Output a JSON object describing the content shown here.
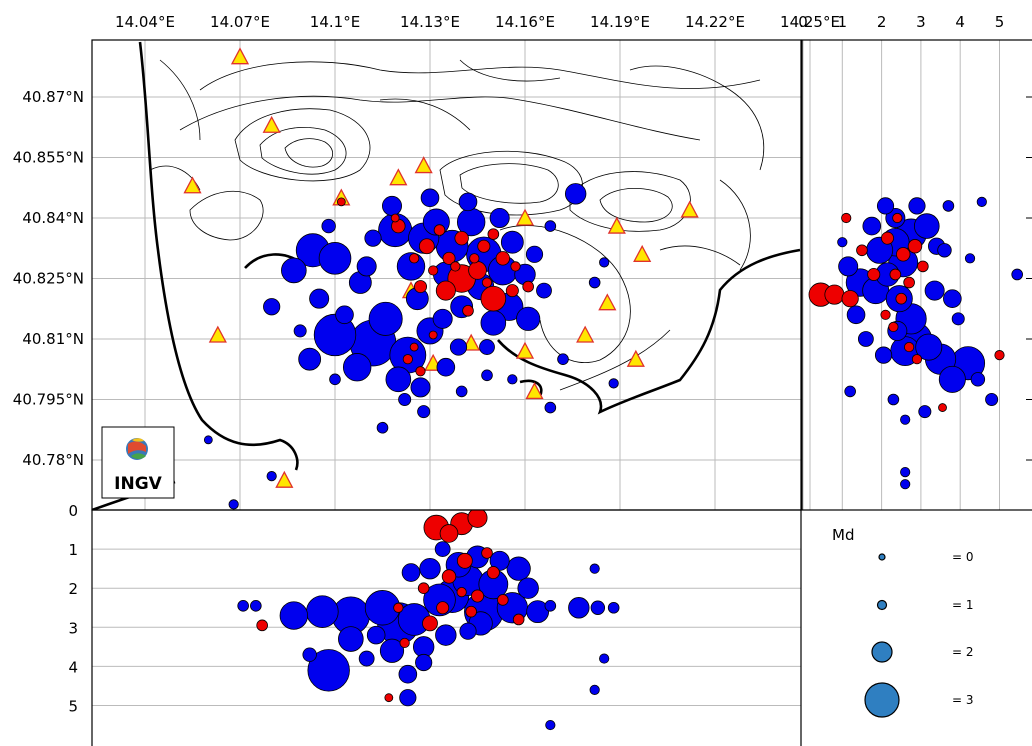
{
  "map": {
    "lon_ticks": [
      "14.04°E",
      "14.07°E",
      "14.1°E",
      "14.13°E",
      "14.16°E",
      "14.19°E",
      "14.22°E",
      "14.25°E"
    ],
    "lat_ticks": [
      "40.87°N",
      "40.855°N",
      "40.84°N",
      "40.825°N",
      "40.81°N",
      "40.795°N",
      "40.78°N"
    ],
    "logo_text": "INGV"
  },
  "side_panel": {
    "depth_ticks": [
      "0",
      "1",
      "2",
      "3",
      "4",
      "5"
    ]
  },
  "bottom_panel": {
    "depth_ticks": [
      "0",
      "1",
      "2",
      "3",
      "4",
      "5"
    ]
  },
  "legend": {
    "title": "Md",
    "entries": [
      {
        "magnitude": 0,
        "label": "= 0"
      },
      {
        "magnitude": 1,
        "label": "= 1"
      },
      {
        "magnitude": 2,
        "label": "= 2"
      },
      {
        "magnitude": 3,
        "label": "= 3"
      }
    ]
  },
  "colors": {
    "event_blue": "#0000ee",
    "event_red": "#ee0000",
    "station_fill": "#ffe600",
    "station_edge": "#e0322c",
    "legend_fill": "#2f7fc1",
    "grid": "#bbbbbb"
  },
  "chart_data": {
    "type": "scatter",
    "stations": [
      [
        14.07,
        40.88
      ],
      [
        14.08,
        40.863
      ],
      [
        14.055,
        40.848
      ],
      [
        14.102,
        40.845
      ],
      [
        14.12,
        40.85
      ],
      [
        14.128,
        40.853
      ],
      [
        14.16,
        40.84
      ],
      [
        14.189,
        40.838
      ],
      [
        14.212,
        40.842
      ],
      [
        14.197,
        40.831
      ],
      [
        14.186,
        40.819
      ],
      [
        14.179,
        40.811
      ],
      [
        14.16,
        40.807
      ],
      [
        14.195,
        40.805
      ],
      [
        14.131,
        40.804
      ],
      [
        14.143,
        40.809
      ],
      [
        14.124,
        40.822
      ],
      [
        14.063,
        40.811
      ],
      [
        14.084,
        40.775
      ],
      [
        14.163,
        40.797
      ]
    ],
    "blue_events": [
      [
        14.093,
        40.832,
        2.0
      ],
      [
        14.1,
        40.83,
        1.9
      ],
      [
        14.087,
        40.827,
        1.4
      ],
      [
        14.108,
        40.824,
        1.2
      ],
      [
        14.095,
        40.82,
        1.0
      ],
      [
        14.103,
        40.816,
        0.9
      ],
      [
        14.08,
        40.818,
        0.8
      ],
      [
        14.112,
        40.835,
        0.8
      ],
      [
        14.098,
        40.838,
        0.6
      ],
      [
        14.089,
        40.812,
        0.5
      ],
      [
        14.1,
        40.811,
        2.6
      ],
      [
        14.112,
        40.809,
        2.9
      ],
      [
        14.123,
        40.806,
        2.2
      ],
      [
        14.116,
        40.815,
        2.0
      ],
      [
        14.13,
        40.812,
        1.5
      ],
      [
        14.107,
        40.803,
        1.6
      ],
      [
        14.12,
        40.8,
        1.4
      ],
      [
        14.127,
        40.798,
        1.0
      ],
      [
        14.135,
        40.803,
        0.9
      ],
      [
        14.092,
        40.805,
        1.2
      ],
      [
        14.119,
        40.837,
        2.0
      ],
      [
        14.128,
        40.835,
        1.8
      ],
      [
        14.137,
        40.833,
        1.9
      ],
      [
        14.147,
        40.831,
        2.1
      ],
      [
        14.153,
        40.827,
        1.7
      ],
      [
        14.143,
        40.839,
        1.6
      ],
      [
        14.132,
        40.839,
        1.5
      ],
      [
        14.124,
        40.828,
        1.6
      ],
      [
        14.135,
        40.826,
        1.4
      ],
      [
        14.146,
        40.823,
        1.5
      ],
      [
        14.155,
        40.818,
        1.6
      ],
      [
        14.161,
        40.815,
        1.3
      ],
      [
        14.15,
        40.814,
        1.4
      ],
      [
        14.14,
        40.818,
        1.2
      ],
      [
        14.156,
        40.834,
        1.2
      ],
      [
        14.16,
        40.826,
        1.1
      ],
      [
        14.118,
        40.843,
        1.0
      ],
      [
        14.13,
        40.845,
        0.9
      ],
      [
        14.142,
        40.844,
        0.9
      ],
      [
        14.152,
        40.84,
        1.0
      ],
      [
        14.163,
        40.831,
        0.8
      ],
      [
        14.166,
        40.822,
        0.7
      ],
      [
        14.126,
        40.82,
        1.2
      ],
      [
        14.134,
        40.815,
        1.0
      ],
      [
        14.11,
        40.828,
        1.0
      ],
      [
        14.148,
        40.808,
        0.7
      ],
      [
        14.139,
        40.808,
        0.8
      ],
      [
        14.128,
        40.792,
        0.5
      ],
      [
        14.122,
        40.795,
        0.5
      ],
      [
        14.14,
        40.797,
        0.4
      ],
      [
        14.176,
        40.846,
        1.1
      ],
      [
        14.185,
        40.829,
        0.3
      ],
      [
        14.182,
        40.824,
        0.4
      ],
      [
        14.172,
        40.805,
        0.4
      ],
      [
        14.188,
        40.799,
        0.3
      ],
      [
        14.168,
        40.838,
        0.4
      ],
      [
        14.168,
        40.793,
        0.4
      ],
      [
        14.06,
        40.785,
        0.2
      ],
      [
        14.08,
        40.776,
        0.3
      ],
      [
        14.068,
        40.769,
        0.3
      ],
      [
        14.148,
        40.801,
        0.4
      ],
      [
        14.156,
        40.8,
        0.3
      ],
      [
        14.1,
        40.8,
        0.4
      ],
      [
        14.115,
        40.788,
        0.4
      ]
    ],
    "red_events": [
      [
        14.14,
        40.825,
        1.6
      ],
      [
        14.15,
        40.82,
        1.4
      ],
      [
        14.135,
        40.822,
        1.0
      ],
      [
        14.145,
        40.827,
        0.9
      ],
      [
        14.129,
        40.833,
        0.7
      ],
      [
        14.14,
        40.835,
        0.6
      ],
      [
        14.153,
        40.83,
        0.6
      ],
      [
        14.136,
        40.83,
        0.5
      ],
      [
        14.147,
        40.833,
        0.5
      ],
      [
        14.12,
        40.838,
        0.6
      ],
      [
        14.127,
        40.823,
        0.5
      ],
      [
        14.142,
        40.817,
        0.4
      ],
      [
        14.156,
        40.822,
        0.5
      ],
      [
        14.133,
        40.837,
        0.4
      ],
      [
        14.15,
        40.836,
        0.4
      ],
      [
        14.161,
        40.823,
        0.4
      ],
      [
        14.144,
        40.83,
        0.3
      ],
      [
        14.138,
        40.828,
        0.3
      ],
      [
        14.131,
        40.827,
        0.3
      ],
      [
        14.125,
        40.83,
        0.3
      ],
      [
        14.148,
        40.824,
        0.3
      ],
      [
        14.157,
        40.828,
        0.3
      ],
      [
        14.123,
        40.805,
        0.3
      ],
      [
        14.127,
        40.802,
        0.3
      ],
      [
        14.102,
        40.844,
        0.2
      ],
      [
        14.119,
        40.84,
        0.2
      ],
      [
        14.125,
        40.808,
        0.2
      ],
      [
        14.131,
        40.811,
        0.2
      ]
    ],
    "bottom_blue": [
      [
        14.071,
        2.45,
        0.4
      ],
      [
        14.075,
        2.45,
        0.4
      ],
      [
        14.087,
        2.7,
        1.6
      ],
      [
        14.096,
        2.6,
        1.9
      ],
      [
        14.105,
        2.7,
        2.3
      ],
      [
        14.115,
        2.5,
        2.1
      ],
      [
        14.125,
        2.8,
        1.9
      ],
      [
        14.137,
        2.2,
        2.0
      ],
      [
        14.147,
        2.6,
        2.4
      ],
      [
        14.156,
        2.5,
        1.8
      ],
      [
        14.12,
        2.9,
        2.6
      ],
      [
        14.133,
        2.3,
        1.9
      ],
      [
        14.142,
        1.8,
        1.8
      ],
      [
        14.15,
        1.9,
        1.7
      ],
      [
        14.158,
        1.5,
        1.3
      ],
      [
        14.139,
        1.4,
        1.4
      ],
      [
        14.13,
        1.5,
        1.1
      ],
      [
        14.145,
        1.2,
        1.2
      ],
      [
        14.152,
        1.3,
        1.0
      ],
      [
        14.124,
        1.6,
        0.9
      ],
      [
        14.161,
        2.0,
        1.1
      ],
      [
        14.164,
        2.6,
        1.2
      ],
      [
        14.098,
        4.1,
        2.6
      ],
      [
        14.118,
        3.6,
        1.3
      ],
      [
        14.128,
        3.5,
        1.1
      ],
      [
        14.123,
        4.2,
        0.9
      ],
      [
        14.135,
        3.2,
        1.1
      ],
      [
        14.142,
        3.1,
        0.8
      ],
      [
        14.113,
        3.2,
        0.9
      ],
      [
        14.092,
        3.7,
        0.6
      ],
      [
        14.11,
        3.8,
        0.7
      ],
      [
        14.168,
        2.45,
        0.4
      ],
      [
        14.177,
        2.5,
        1.1
      ],
      [
        14.183,
        2.5,
        0.6
      ],
      [
        14.188,
        2.5,
        0.4
      ],
      [
        14.182,
        1.5,
        0.3
      ],
      [
        14.185,
        3.8,
        0.3
      ],
      [
        14.182,
        4.6,
        0.3
      ],
      [
        14.168,
        5.5,
        0.3
      ],
      [
        14.134,
        1.0,
        0.7
      ],
      [
        14.128,
        3.9,
        0.8
      ],
      [
        14.123,
        4.8,
        0.8
      ],
      [
        14.105,
        3.3,
        1.4
      ],
      [
        14.146,
        2.9,
        1.3
      ]
    ],
    "bottom_red": [
      [
        14.132,
        0.45,
        1.4
      ],
      [
        14.14,
        0.35,
        1.2
      ],
      [
        14.145,
        0.2,
        1.0
      ],
      [
        14.136,
        0.6,
        0.9
      ],
      [
        14.141,
        1.3,
        0.7
      ],
      [
        14.136,
        1.7,
        0.6
      ],
      [
        14.145,
        2.2,
        0.5
      ],
      [
        14.134,
        2.5,
        0.5
      ],
      [
        14.13,
        2.9,
        0.7
      ],
      [
        14.15,
        1.6,
        0.5
      ],
      [
        14.128,
        2.0,
        0.4
      ],
      [
        14.143,
        2.6,
        0.4
      ],
      [
        14.153,
        2.3,
        0.4
      ],
      [
        14.158,
        2.8,
        0.4
      ],
      [
        14.12,
        2.5,
        0.3
      ],
      [
        14.077,
        2.95,
        0.4
      ],
      [
        14.122,
        3.4,
        0.3
      ],
      [
        14.117,
        4.8,
        0.2
      ],
      [
        14.148,
        1.1,
        0.4
      ],
      [
        14.14,
        2.1,
        0.3
      ]
    ],
    "side_blue": [
      [
        2.75,
        40.836,
        1.8
      ],
      [
        2.35,
        40.834,
        1.6
      ],
      [
        1.95,
        40.832,
        1.5
      ],
      [
        2.55,
        40.829,
        1.7
      ],
      [
        1.45,
        40.824,
        1.6
      ],
      [
        1.85,
        40.822,
        1.5
      ],
      [
        2.15,
        40.826,
        1.3
      ],
      [
        2.45,
        40.82,
        1.5
      ],
      [
        2.75,
        40.815,
        1.8
      ],
      [
        3.15,
        40.838,
        1.4
      ],
      [
        2.85,
        40.81,
        2.0
      ],
      [
        2.6,
        40.807,
        1.7
      ],
      [
        3.2,
        40.808,
        1.5
      ],
      [
        3.5,
        40.805,
        1.8
      ],
      [
        4.2,
        40.804,
        2.0
      ],
      [
        3.8,
        40.8,
        1.5
      ],
      [
        2.35,
        40.84,
        1.0
      ],
      [
        2.1,
        40.843,
        0.8
      ],
      [
        1.75,
        40.838,
        0.9
      ],
      [
        1.15,
        40.828,
        1.0
      ],
      [
        1.35,
        40.816,
        0.9
      ],
      [
        1.6,
        40.81,
        0.7
      ],
      [
        2.05,
        40.806,
        0.8
      ],
      [
        2.4,
        40.812,
        1.0
      ],
      [
        3.35,
        40.822,
        1.0
      ],
      [
        3.8,
        40.82,
        0.9
      ],
      [
        3.6,
        40.832,
        0.6
      ],
      [
        2.9,
        40.843,
        0.8
      ],
      [
        1.0,
        40.834,
        0.3
      ],
      [
        3.95,
        40.815,
        0.5
      ],
      [
        4.25,
        40.83,
        0.3
      ],
      [
        5.45,
        40.826,
        0.4
      ],
      [
        4.8,
        40.795,
        0.5
      ],
      [
        4.45,
        40.8,
        0.6
      ],
      [
        3.1,
        40.792,
        0.5
      ],
      [
        2.6,
        40.79,
        0.3
      ],
      [
        2.3,
        40.795,
        0.4
      ],
      [
        1.2,
        40.797,
        0.4
      ],
      [
        2.6,
        40.777,
        0.3
      ],
      [
        2.6,
        40.774,
        0.3
      ],
      [
        4.55,
        40.844,
        0.3
      ],
      [
        3.7,
        40.843,
        0.4
      ],
      [
        3.4,
        40.833,
        0.8
      ]
    ],
    "side_red": [
      [
        0.45,
        40.821,
        1.3
      ],
      [
        0.8,
        40.821,
        1.0
      ],
      [
        1.2,
        40.82,
        0.8
      ],
      [
        2.85,
        40.833,
        0.6
      ],
      [
        2.55,
        40.831,
        0.6
      ],
      [
        2.15,
        40.835,
        0.5
      ],
      [
        1.8,
        40.826,
        0.5
      ],
      [
        2.35,
        40.826,
        0.4
      ],
      [
        2.5,
        40.82,
        0.4
      ],
      [
        2.7,
        40.824,
        0.4
      ],
      [
        3.05,
        40.828,
        0.4
      ],
      [
        2.1,
        40.816,
        0.3
      ],
      [
        2.3,
        40.813,
        0.3
      ],
      [
        2.7,
        40.808,
        0.3
      ],
      [
        2.9,
        40.805,
        0.3
      ],
      [
        1.5,
        40.832,
        0.4
      ],
      [
        1.1,
        40.84,
        0.3
      ],
      [
        5.0,
        40.806,
        0.3
      ],
      [
        3.55,
        40.793,
        0.2
      ],
      [
        2.4,
        40.84,
        0.3
      ]
    ]
  }
}
